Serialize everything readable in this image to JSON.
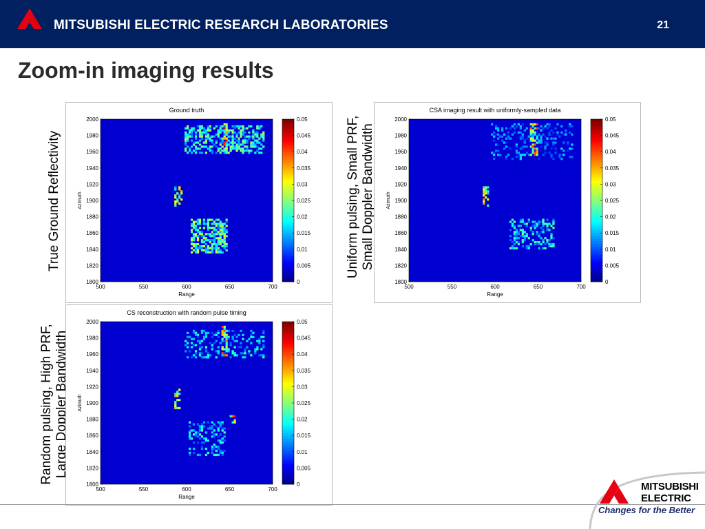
{
  "header": {
    "org_name": "MITSUBISHI ELECTRIC RESEARCH LABORATORIES",
    "page_number": "21"
  },
  "slide": {
    "title": "Zoom-in imaging results"
  },
  "side_labels": {
    "ground_truth": [
      "True Ground Reflectivity"
    ],
    "uniform": [
      "Uniform pulsing, Small PRF,",
      "Small Doppler Bandwidth"
    ],
    "random": [
      "Random pulsing, High PRF,",
      "Large Doppler Bandwidth"
    ]
  },
  "brand": {
    "word1": "MITSUBISHI",
    "word2": "ELECTRIC",
    "tagline": "Changes for the Better"
  },
  "chart_data": [
    {
      "type": "heatmap",
      "title": "Ground truth",
      "xlabel": "Range",
      "ylabel": "Azimuth",
      "xlim": [
        500,
        700
      ],
      "ylim": [
        1800,
        2000
      ],
      "xticks": [
        "500",
        "550",
        "600",
        "650",
        "700"
      ],
      "yticks": [
        "2000",
        "1980",
        "1960",
        "1940",
        "1920",
        "1900",
        "1880",
        "1860",
        "1840",
        "1820",
        "1800"
      ],
      "colorbar": {
        "range": [
          0,
          0.05
        ],
        "ticks": [
          "0.05",
          "0.045",
          "0.04",
          "0.035",
          "0.03",
          "0.025",
          "0.02",
          "0.015",
          "0.01",
          "0.005",
          "0"
        ],
        "colormap": "jet"
      }
    },
    {
      "type": "heatmap",
      "title": "CSA imaging result with uniformly-sampled data",
      "xlabel": "Range",
      "ylabel": "Azimuth",
      "xlim": [
        500,
        700
      ],
      "ylim": [
        1800,
        2000
      ],
      "xticks": [
        "500",
        "550",
        "600",
        "650",
        "700"
      ],
      "yticks": [
        "2000",
        "1980",
        "1960",
        "1940",
        "1920",
        "1900",
        "1880",
        "1860",
        "1840",
        "1820",
        "1800"
      ],
      "colorbar": {
        "range": [
          0,
          0.05
        ],
        "ticks": [
          "0.05",
          "0.045",
          "0.04",
          "0.035",
          "0.03",
          "0.025",
          "0.02",
          "0.015",
          "0.01",
          "0.005",
          "0"
        ],
        "colormap": "jet"
      }
    },
    {
      "type": "heatmap",
      "title": "CS reconstruction with random pulse timing",
      "xlabel": "Range",
      "ylabel": "Azimuth",
      "xlim": [
        500,
        700
      ],
      "ylim": [
        1800,
        2000
      ],
      "xticks": [
        "500",
        "550",
        "600",
        "650",
        "700"
      ],
      "yticks": [
        "2000",
        "1980",
        "1960",
        "1940",
        "1920",
        "1900",
        "1880",
        "1860",
        "1840",
        "1820",
        "1800"
      ],
      "colorbar": {
        "range": [
          0,
          0.05
        ],
        "ticks": [
          "0.05",
          "0.045",
          "0.04",
          "0.035",
          "0.03",
          "0.025",
          "0.02",
          "0.015",
          "0.01",
          "0.005",
          "0"
        ],
        "colormap": "jet"
      }
    }
  ]
}
